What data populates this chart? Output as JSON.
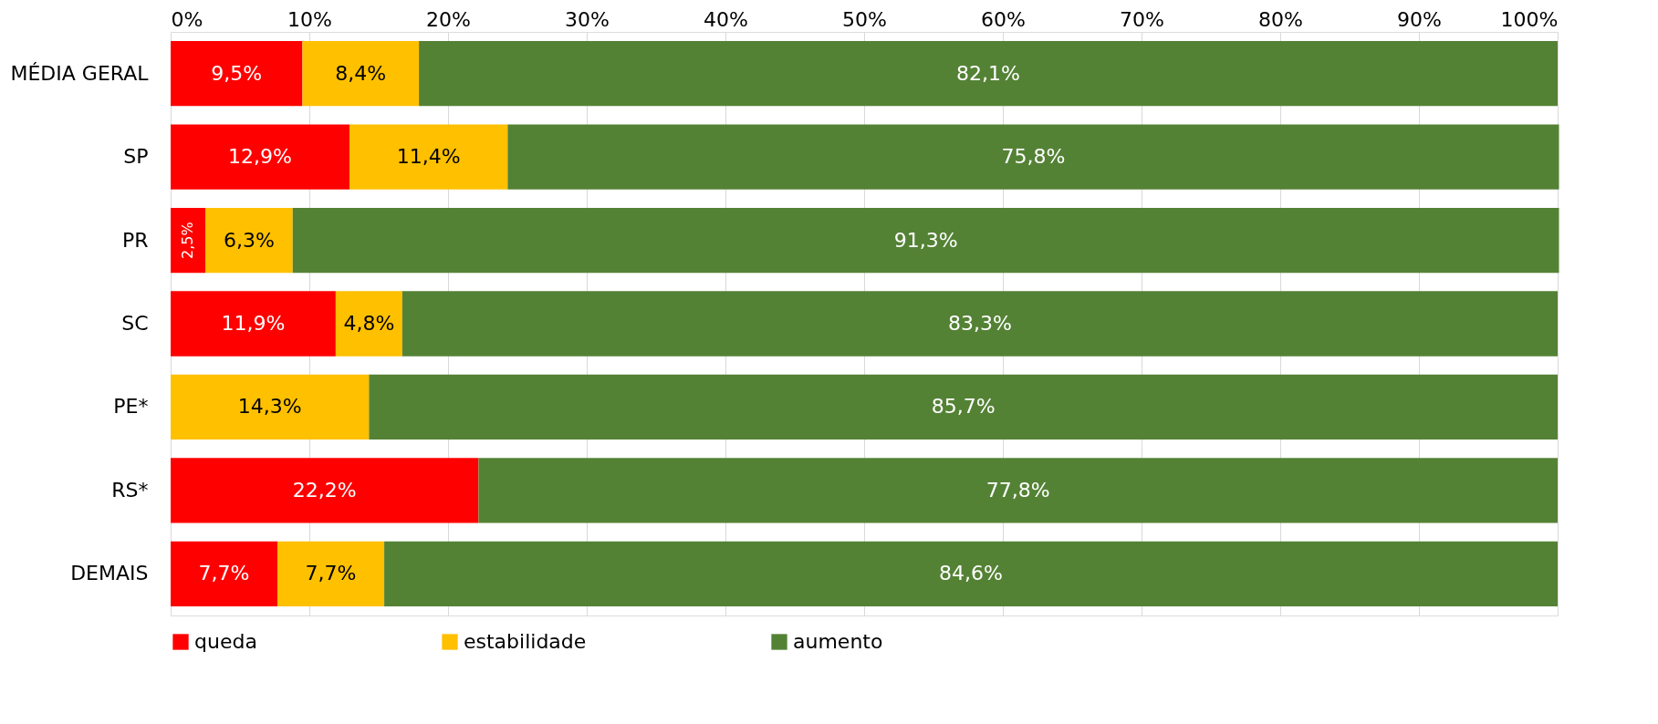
{
  "chart_data": {
    "type": "bar",
    "orientation": "horizontal",
    "stacked": true,
    "categories": [
      "MÉDIA GERAL",
      "SP",
      "PR",
      "SC",
      "PE*",
      "RS*",
      "DEMAIS"
    ],
    "series": [
      {
        "name": "queda",
        "color": "#ff0000",
        "values": [
          9.5,
          12.9,
          2.5,
          11.9,
          null,
          22.2,
          7.7
        ],
        "value_labels": [
          "9,5%",
          "12,9%",
          "2,5%",
          "11,9%",
          null,
          "22,2%",
          "7,7%"
        ]
      },
      {
        "name": "estabilidade",
        "color": "#ffc000",
        "values": [
          8.4,
          11.4,
          6.3,
          4.8,
          14.3,
          null,
          7.7
        ],
        "value_labels": [
          "8,4%",
          "11,4%",
          "6,3%",
          "4,8%",
          "14,3%",
          null,
          "7,7%"
        ]
      },
      {
        "name": "aumento",
        "color": "#548235",
        "values": [
          82.1,
          75.8,
          91.3,
          83.3,
          85.7,
          77.8,
          84.6
        ],
        "value_labels": [
          "82,1%",
          "75,8%",
          "91,3%",
          "83,3%",
          "85,7%",
          "77,8%",
          "84,6%"
        ]
      }
    ],
    "xlim": [
      0,
      100
    ],
    "xticks": [
      {
        "value": 0,
        "label": "0%"
      },
      {
        "value": 10,
        "label": "10%"
      },
      {
        "value": 20,
        "label": "20%"
      },
      {
        "value": 30,
        "label": "30%"
      },
      {
        "value": 40,
        "label": "40%"
      },
      {
        "value": 50,
        "label": "50%"
      },
      {
        "value": 60,
        "label": "60%"
      },
      {
        "value": 70,
        "label": "70%"
      },
      {
        "value": 80,
        "label": "80%"
      },
      {
        "value": 90,
        "label": "90%"
      },
      {
        "value": 100,
        "label": "100%"
      }
    ],
    "grid": "x",
    "legend": "bottom"
  }
}
